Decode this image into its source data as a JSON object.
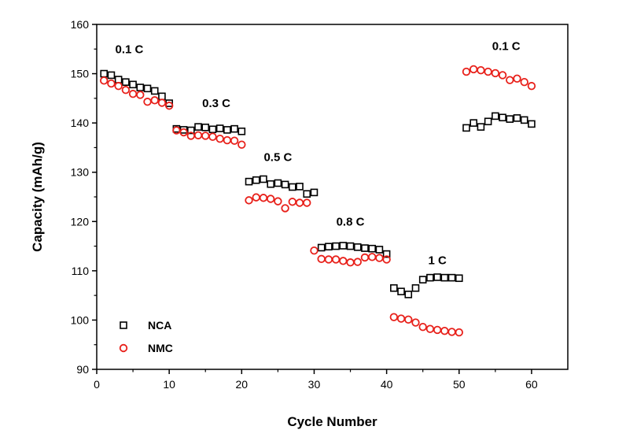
{
  "chart_data": {
    "type": "scatter",
    "xlabel": "Cycle Number",
    "ylabel": "Capacity (mAh/g)",
    "xlim": [
      0,
      65
    ],
    "ylim": [
      90,
      160
    ],
    "xticks": [
      0,
      10,
      20,
      30,
      40,
      50,
      60
    ],
    "yticks": [
      90,
      100,
      110,
      120,
      130,
      140,
      150,
      160
    ],
    "grid": false,
    "legend_position": "bottom-left",
    "series": [
      {
        "name": "NCA",
        "marker": "square",
        "color": "#000000",
        "x": [
          1,
          2,
          3,
          4,
          5,
          6,
          7,
          8,
          9,
          10,
          11,
          12,
          13,
          14,
          15,
          16,
          17,
          18,
          19,
          20,
          21,
          22,
          23,
          24,
          25,
          26,
          27,
          28,
          29,
          30,
          31,
          32,
          33,
          34,
          35,
          36,
          37,
          38,
          39,
          40,
          41,
          42,
          43,
          44,
          45,
          46,
          47,
          48,
          49,
          50,
          51,
          52,
          53,
          54,
          55,
          56,
          57,
          58,
          59,
          60
        ],
        "y": [
          150.0,
          149.7,
          148.8,
          148.3,
          147.8,
          147.2,
          147.0,
          146.5,
          145.4,
          144.0,
          138.8,
          138.6,
          138.5,
          139.2,
          139.1,
          138.7,
          138.9,
          138.6,
          138.8,
          138.3,
          128.1,
          128.4,
          128.6,
          127.6,
          127.8,
          127.5,
          127.0,
          127.1,
          125.6,
          125.9,
          114.7,
          114.9,
          115.0,
          115.1,
          115.0,
          114.8,
          114.6,
          114.5,
          114.3,
          113.4,
          106.5,
          105.8,
          105.2,
          106.5,
          108.2,
          108.6,
          108.7,
          108.6,
          108.6,
          108.5,
          139.0,
          140.0,
          139.2,
          140.3,
          141.4,
          141.1,
          140.8,
          141.0,
          140.6,
          139.8
        ]
      },
      {
        "name": "NMC",
        "marker": "circle",
        "color": "#e8201a",
        "x": [
          1,
          2,
          3,
          4,
          5,
          6,
          7,
          8,
          9,
          10,
          11,
          12,
          13,
          14,
          15,
          16,
          17,
          18,
          19,
          20,
          21,
          22,
          23,
          24,
          25,
          26,
          27,
          28,
          29,
          30,
          31,
          32,
          33,
          34,
          35,
          36,
          37,
          38,
          39,
          40,
          41,
          42,
          43,
          44,
          45,
          46,
          47,
          48,
          49,
          50,
          51,
          52,
          53,
          54,
          55,
          56,
          57,
          58,
          59,
          60
        ],
        "y": [
          148.6,
          148.0,
          147.5,
          146.7,
          145.9,
          145.7,
          144.3,
          144.6,
          144.1,
          143.5,
          138.5,
          138.1,
          137.4,
          137.5,
          137.4,
          137.2,
          136.8,
          136.5,
          136.4,
          135.6,
          124.3,
          124.9,
          124.8,
          124.6,
          124.1,
          122.7,
          124.0,
          123.8,
          123.8,
          114.1,
          112.4,
          112.3,
          112.3,
          112.0,
          111.7,
          111.8,
          112.7,
          112.8,
          112.6,
          112.3,
          100.6,
          100.3,
          100.1,
          99.5,
          98.6,
          98.2,
          98.0,
          97.8,
          97.6,
          97.5,
          150.4,
          150.9,
          150.7,
          150.4,
          150.1,
          149.7,
          148.7,
          149.0,
          148.3,
          147.5
        ]
      }
    ],
    "annotations": [
      {
        "text": "0.1 C",
        "x": 4.5,
        "y": 154.2
      },
      {
        "text": "0.3 C",
        "x": 16.5,
        "y": 143.2
      },
      {
        "text": "0.5 C",
        "x": 25.0,
        "y": 132.3
      },
      {
        "text": "0.8 C",
        "x": 35.0,
        "y": 119.2
      },
      {
        "text": "1 C",
        "x": 47.0,
        "y": 111.3
      },
      {
        "text": "0.1 C",
        "x": 56.5,
        "y": 154.8
      }
    ]
  }
}
